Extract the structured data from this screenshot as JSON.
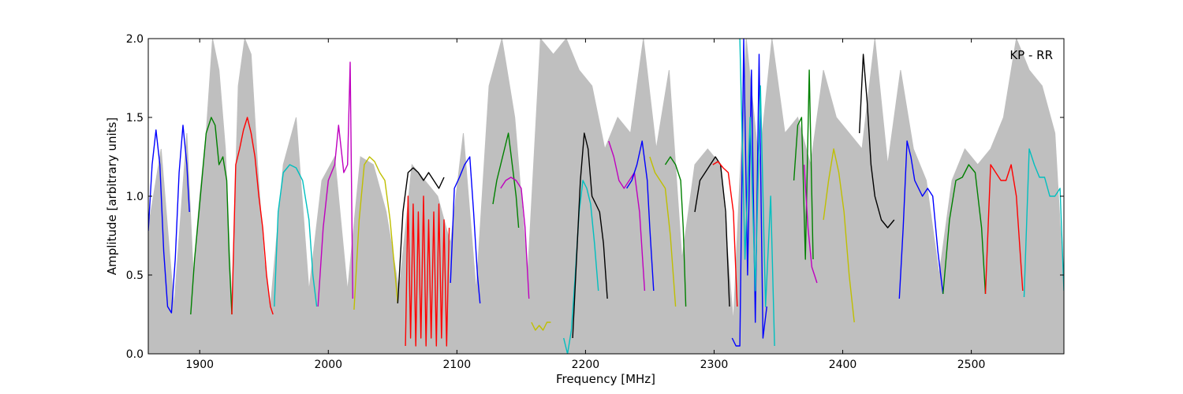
{
  "chart_data": {
    "type": "line",
    "title": "",
    "annotation": "KP - RR",
    "xlabel": "Frequency [MHz]",
    "ylabel": "Amplitude [arbitrary units]",
    "xlim": [
      1860,
      2572
    ],
    "ylim": [
      0.0,
      2.0
    ],
    "xticks": [
      1900,
      2000,
      2100,
      2200,
      2300,
      2400,
      2500
    ],
    "xtick_labels": [
      "1900",
      "2000",
      "2100",
      "2200",
      "2300",
      "2400",
      "2500"
    ],
    "yticks": [
      0.0,
      0.5,
      1.0,
      1.5,
      2.0
    ],
    "ytick_labels": [
      "0.0",
      "0.5",
      "1.0",
      "1.5",
      "2.0"
    ],
    "grid": false,
    "background_series": {
      "color": "#bfbfbf",
      "x": [
        1860,
        1870,
        1880,
        1890,
        1895,
        1900,
        1905,
        1910,
        1915,
        1920,
        1925,
        1930,
        1935,
        1940,
        1945,
        1950,
        1955,
        1965,
        1975,
        1985,
        1995,
        2005,
        2015,
        2025,
        2035,
        2045,
        2055,
        2065,
        2075,
        2085,
        2095,
        2105,
        2115,
        2125,
        2135,
        2145,
        2155,
        2165,
        2175,
        2185,
        2195,
        2205,
        2215,
        2225,
        2235,
        2245,
        2255,
        2265,
        2275,
        2285,
        2295,
        2305,
        2315,
        2325,
        2335,
        2345,
        2355,
        2365,
        2375,
        2385,
        2395,
        2405,
        2415,
        2425,
        2435,
        2445,
        2455,
        2465,
        2475,
        2485,
        2495,
        2505,
        2515,
        2525,
        2535,
        2545,
        2555,
        2565,
        2572
      ],
      "y": [
        0.8,
        1.3,
        0.3,
        1.4,
        0.5,
        1.0,
        1.4,
        2.0,
        1.8,
        1.3,
        0.3,
        1.7,
        2.0,
        1.9,
        1.2,
        0.6,
        0.3,
        1.2,
        1.5,
        0.4,
        1.1,
        1.25,
        0.4,
        1.25,
        1.2,
        0.9,
        0.4,
        1.2,
        1.1,
        1.0,
        0.7,
        1.4,
        0.4,
        1.7,
        2.0,
        1.5,
        0.5,
        2.0,
        1.9,
        2.0,
        1.8,
        1.7,
        1.3,
        1.5,
        1.4,
        2.0,
        1.3,
        1.8,
        0.6,
        1.2,
        1.3,
        1.2,
        0.2,
        2.0,
        1.2,
        2.0,
        1.4,
        1.5,
        1.2,
        1.8,
        1.5,
        1.4,
        1.3,
        2.0,
        1.2,
        1.8,
        1.3,
        1.1,
        0.5,
        1.1,
        1.3,
        1.2,
        1.3,
        1.5,
        2.0,
        1.8,
        1.7,
        1.4,
        0.4
      ]
    },
    "series": [
      {
        "color": "#0000ff",
        "x": [
          1860,
          1863,
          1866,
          1869,
          1872,
          1875,
          1878,
          1881,
          1884,
          1887,
          1890,
          1892
        ],
        "y": [
          0.78,
          1.2,
          1.42,
          1.2,
          0.65,
          0.3,
          0.26,
          0.6,
          1.15,
          1.45,
          1.2,
          0.9
        ]
      },
      {
        "color": "#008000",
        "x": [
          1893,
          1896,
          1900,
          1905,
          1909,
          1912,
          1915,
          1918,
          1921,
          1923,
          1925
        ],
        "y": [
          0.25,
          0.6,
          0.95,
          1.4,
          1.5,
          1.45,
          1.2,
          1.25,
          1.1,
          0.6,
          0.25
        ]
      },
      {
        "color": "#ff0000",
        "x": [
          1925,
          1928,
          1931,
          1934,
          1937,
          1940,
          1943,
          1946,
          1949,
          1952,
          1955,
          1957
        ],
        "y": [
          0.25,
          1.2,
          1.3,
          1.42,
          1.5,
          1.4,
          1.25,
          1.0,
          0.8,
          0.5,
          0.3,
          0.25
        ]
      },
      {
        "color": "#00bfbf",
        "x": [
          1958,
          1961,
          1965,
          1970,
          1975,
          1980,
          1985,
          1988,
          1991
        ],
        "y": [
          0.3,
          0.9,
          1.15,
          1.2,
          1.18,
          1.1,
          0.85,
          0.5,
          0.3
        ]
      },
      {
        "color": "#bf00bf",
        "x": [
          1992,
          1996,
          2000,
          2005,
          2008,
          2012,
          2015,
          2017,
          2019
        ],
        "y": [
          0.3,
          0.8,
          1.1,
          1.2,
          1.45,
          1.15,
          1.2,
          1.85,
          0.35
        ]
      },
      {
        "color": "#bfbf00",
        "x": [
          2020,
          2024,
          2028,
          2032,
          2036,
          2040,
          2044,
          2048,
          2052,
          2054
        ],
        "y": [
          0.28,
          0.85,
          1.2,
          1.25,
          1.22,
          1.15,
          1.1,
          0.85,
          0.5,
          0.32
        ]
      },
      {
        "color": "#000000",
        "x": [
          2054,
          2058,
          2062,
          2066,
          2070,
          2074,
          2078,
          2082,
          2086,
          2090
        ],
        "y": [
          0.32,
          0.9,
          1.15,
          1.18,
          1.15,
          1.1,
          1.15,
          1.1,
          1.05,
          1.12
        ]
      },
      {
        "color": "#ff0000",
        "x": [
          2060,
          2062,
          2064,
          2066,
          2068,
          2070,
          2072,
          2074,
          2076,
          2078,
          2080,
          2082,
          2084,
          2086,
          2088,
          2090,
          2092,
          2094
        ],
        "y": [
          0.05,
          1.0,
          0.1,
          0.95,
          0.05,
          0.9,
          0.1,
          1.0,
          0.05,
          0.85,
          0.1,
          0.9,
          0.05,
          0.95,
          0.1,
          0.85,
          0.05,
          0.8
        ]
      },
      {
        "color": "#0000ff",
        "x": [
          2095,
          2098,
          2102,
          2106,
          2110,
          2113,
          2116,
          2118
        ],
        "y": [
          0.45,
          1.05,
          1.12,
          1.2,
          1.25,
          0.9,
          0.5,
          0.32
        ]
      },
      {
        "color": "#008000",
        "x": [
          2128,
          2131,
          2134,
          2137,
          2140,
          2143,
          2146,
          2148
        ],
        "y": [
          0.95,
          1.1,
          1.2,
          1.3,
          1.4,
          1.2,
          1.0,
          0.8
        ]
      },
      {
        "color": "#bf00bf",
        "x": [
          2134,
          2138,
          2142,
          2146,
          2150,
          2153,
          2156
        ],
        "y": [
          1.05,
          1.1,
          1.12,
          1.1,
          1.05,
          0.8,
          0.35
        ]
      },
      {
        "color": "#bfbf00",
        "x": [
          2158,
          2161,
          2164,
          2167,
          2170,
          2173
        ],
        "y": [
          0.2,
          0.15,
          0.18,
          0.15,
          0.2,
          0.2
        ]
      },
      {
        "color": "#00bfbf",
        "x": [
          2183,
          2186,
          2189,
          2192,
          2195,
          2198,
          2201,
          2204,
          2207,
          2210
        ],
        "y": [
          0.1,
          0.0,
          0.15,
          0.5,
          0.9,
          1.1,
          1.05,
          0.95,
          0.7,
          0.4
        ]
      },
      {
        "color": "#000000",
        "x": [
          2190,
          2193,
          2196,
          2199,
          2202,
          2205,
          2208,
          2211,
          2214,
          2217
        ],
        "y": [
          0.1,
          0.6,
          1.1,
          1.4,
          1.3,
          1.0,
          0.95,
          0.9,
          0.7,
          0.35
        ]
      },
      {
        "color": "#bf00bf",
        "x": [
          2218,
          2222,
          2226,
          2230,
          2234,
          2238,
          2242,
          2246
        ],
        "y": [
          1.35,
          1.25,
          1.1,
          1.05,
          1.1,
          1.15,
          0.9,
          0.4
        ]
      },
      {
        "color": "#0000ff",
        "x": [
          2232,
          2236,
          2240,
          2244,
          2248,
          2250,
          2253
        ],
        "y": [
          1.05,
          1.1,
          1.2,
          1.35,
          1.1,
          0.8,
          0.4
        ]
      },
      {
        "color": "#bfbf00",
        "x": [
          2250,
          2254,
          2258,
          2262,
          2266,
          2270
        ],
        "y": [
          1.25,
          1.15,
          1.1,
          1.05,
          0.75,
          0.3
        ]
      },
      {
        "color": "#008000",
        "x": [
          2262,
          2266,
          2270,
          2274,
          2276,
          2278
        ],
        "y": [
          1.2,
          1.25,
          1.2,
          1.1,
          0.8,
          0.3
        ]
      },
      {
        "color": "#000000",
        "x": [
          2285,
          2289,
          2293,
          2297,
          2301,
          2305,
          2309,
          2312
        ],
        "y": [
          0.9,
          1.1,
          1.15,
          1.2,
          1.25,
          1.2,
          0.9,
          0.3
        ]
      },
      {
        "color": "#ff0000",
        "x": [
          2299,
          2303,
          2307,
          2311,
          2315,
          2318
        ],
        "y": [
          1.2,
          1.22,
          1.18,
          1.15,
          0.9,
          0.3
        ]
      },
      {
        "color": "#0000ff",
        "x": [
          2314,
          2317,
          2320,
          2323,
          2326,
          2329,
          2332,
          2335,
          2338,
          2341
        ],
        "y": [
          0.1,
          0.05,
          0.05,
          2.0,
          0.5,
          1.8,
          0.2,
          1.9,
          0.1,
          0.3
        ]
      },
      {
        "color": "#00bfbf",
        "x": [
          2320,
          2324,
          2328,
          2332,
          2336,
          2340,
          2344,
          2347
        ],
        "y": [
          2.0,
          0.6,
          1.5,
          0.4,
          1.7,
          0.3,
          1.0,
          0.05
        ]
      },
      {
        "color": "#008000",
        "x": [
          2362,
          2365,
          2368,
          2371,
          2374,
          2377
        ],
        "y": [
          1.1,
          1.45,
          1.5,
          0.6,
          1.8,
          0.6
        ]
      },
      {
        "color": "#bf00bf",
        "x": [
          2370,
          2373,
          2376,
          2378,
          2380
        ],
        "y": [
          1.2,
          0.8,
          0.55,
          0.5,
          0.45
        ]
      },
      {
        "color": "#bfbf00",
        "x": [
          2385,
          2389,
          2393,
          2397,
          2401,
          2405,
          2409
        ],
        "y": [
          0.85,
          1.1,
          1.3,
          1.15,
          0.9,
          0.5,
          0.2
        ]
      },
      {
        "color": "#000000",
        "x": [
          2413,
          2416,
          2419,
          2422,
          2425,
          2430,
          2435,
          2440
        ],
        "y": [
          1.4,
          1.9,
          1.6,
          1.2,
          1.0,
          0.85,
          0.8,
          0.85
        ]
      },
      {
        "color": "#0000ff",
        "x": [
          2444,
          2447,
          2450,
          2453,
          2456,
          2459,
          2462,
          2466,
          2470,
          2474,
          2478
        ],
        "y": [
          0.35,
          0.8,
          1.35,
          1.25,
          1.1,
          1.05,
          1.0,
          1.05,
          1.0,
          0.65,
          0.38
        ]
      },
      {
        "color": "#008000",
        "x": [
          2478,
          2483,
          2488,
          2493,
          2498,
          2503,
          2508,
          2511
        ],
        "y": [
          0.38,
          0.85,
          1.1,
          1.12,
          1.2,
          1.15,
          0.8,
          0.38
        ]
      },
      {
        "color": "#ff0000",
        "x": [
          2511,
          2515,
          2519,
          2523,
          2527,
          2531,
          2535,
          2540
        ],
        "y": [
          0.38,
          1.2,
          1.15,
          1.1,
          1.1,
          1.2,
          1.0,
          0.4
        ]
      },
      {
        "color": "#00bfbf",
        "x": [
          2541,
          2545,
          2549,
          2553,
          2557,
          2561,
          2565,
          2569,
          2572
        ],
        "y": [
          0.36,
          1.3,
          1.2,
          1.12,
          1.12,
          1.0,
          1.0,
          1.05,
          0.4
        ]
      }
    ]
  }
}
